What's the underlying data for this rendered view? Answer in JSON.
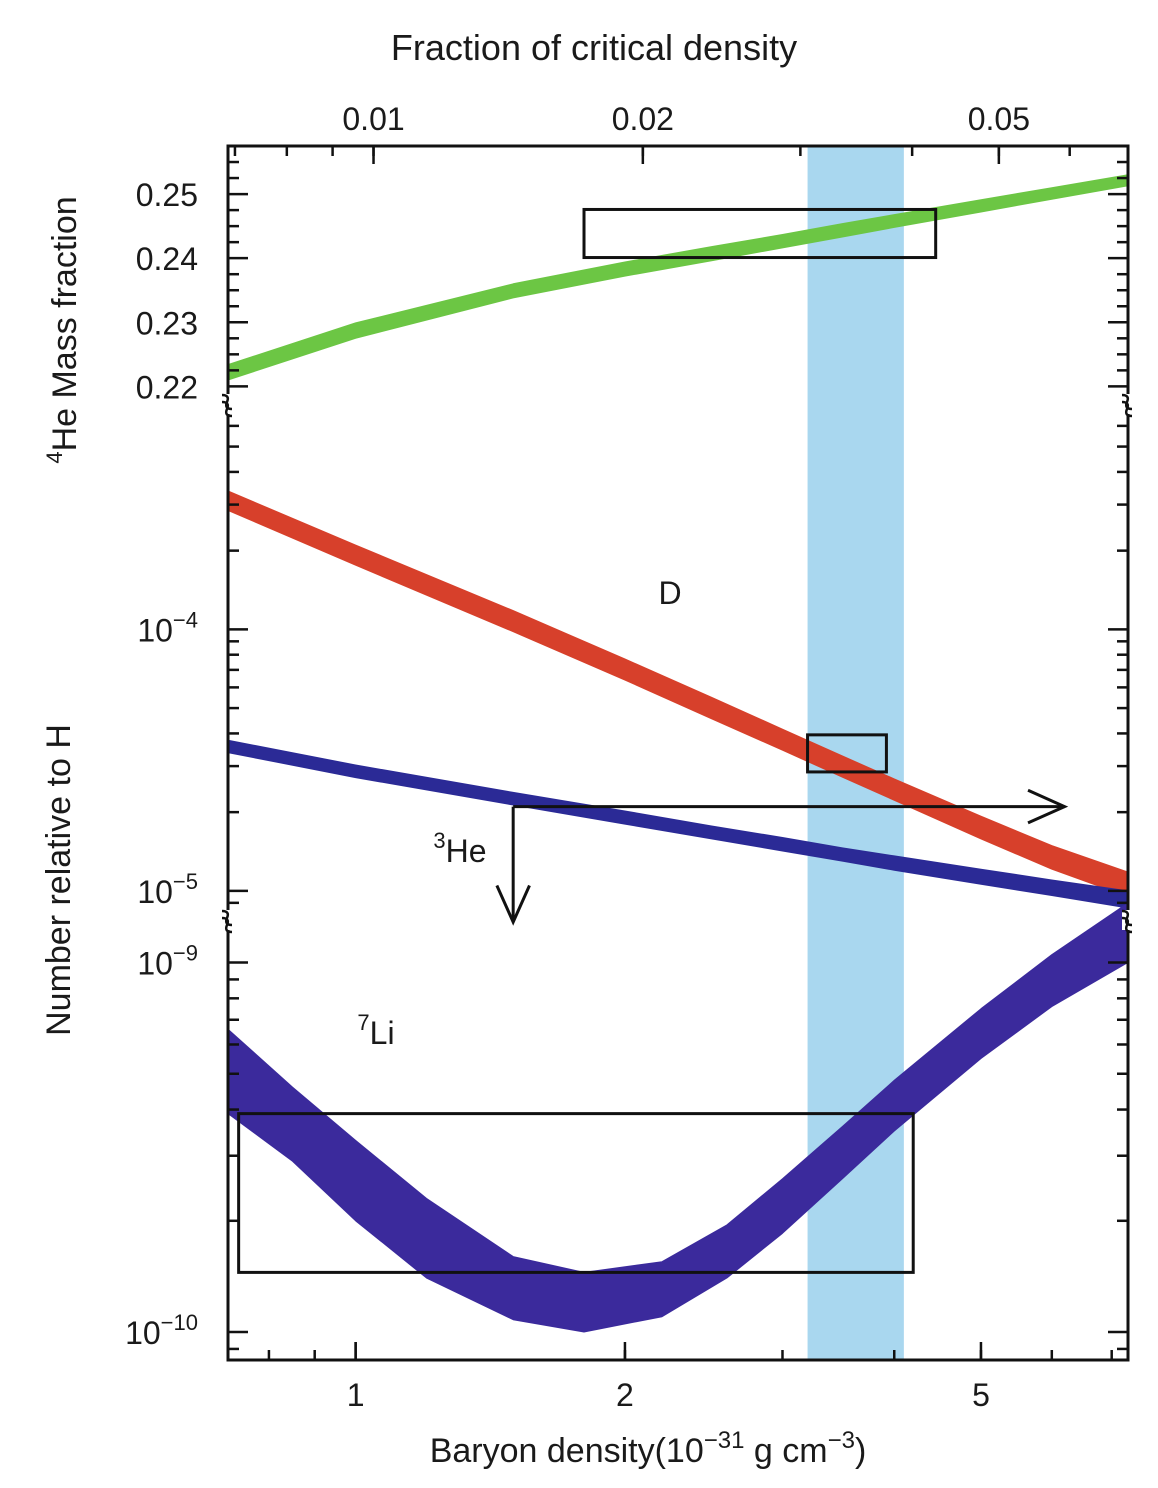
{
  "chart_data": {
    "type": "line",
    "xlabel": "Baryon density(10",
    "xlabel_exp": "−31",
    "xlabel_unit": " g cm",
    "xlabel_unit_exp": "−3",
    "xlabel_close": ")",
    "x_scale": "log",
    "x_range": [
      0.72,
      7.3
    ],
    "xticks": [
      {
        "value": 1,
        "label": "1"
      },
      {
        "value": 2,
        "label": "2"
      },
      {
        "value": 5,
        "label": "5"
      }
    ],
    "top_axis_label": "Fraction of critical density",
    "top_ticks": [
      {
        "value": 0.01,
        "label": "0.01"
      },
      {
        "value": 0.02,
        "label": "0.02"
      },
      {
        "value": 0.05,
        "label": "0.05"
      }
    ],
    "top_axis_factor": 0.00955,
    "ylabel_top_sup": "4",
    "ylabel_top": "He Mass fraction",
    "ylabel_bottom": "Number relative to H",
    "axis_breaks": true,
    "panels": [
      {
        "name": "helium4",
        "y_scale": "linear",
        "y_range": [
          0.2185,
          0.2575
        ],
        "yticks": [
          {
            "value": 0.22,
            "label": "0.22"
          },
          {
            "value": 0.23,
            "label": "0.23"
          },
          {
            "value": 0.24,
            "label": "0.24"
          },
          {
            "value": 0.25,
            "label": "0.25"
          }
        ]
      },
      {
        "name": "d_he3",
        "y_scale": "log",
        "y_range": [
          8.6e-06,
          0.00069
        ],
        "yticks": [
          {
            "value": 1e-05,
            "base": "10",
            "exp": "−5"
          },
          {
            "value": 0.0001,
            "base": "10",
            "exp": "−4"
          }
        ]
      },
      {
        "name": "lithium7",
        "y_scale": "log",
        "y_range": [
          8.4e-11,
          1.24e-09
        ],
        "yticks": [
          {
            "value": 1e-10,
            "base": "10",
            "exp": "−10"
          },
          {
            "value": 1e-09,
            "base": "10",
            "exp": "−9"
          }
        ]
      }
    ],
    "series": [
      {
        "key": "he4",
        "panel": 0,
        "color": "#6cc644",
        "x": [
          0.72,
          1.0,
          1.5,
          2.0,
          2.5,
          3.0,
          3.5,
          4.0,
          5.0,
          6.0,
          7.3
        ],
        "low": [
          0.221,
          0.2275,
          0.2338,
          0.2372,
          0.2396,
          0.2416,
          0.2433,
          0.2448,
          0.2472,
          0.2492,
          0.2513
        ],
        "high": [
          0.2234,
          0.2299,
          0.236,
          0.2394,
          0.2418,
          0.2437,
          0.2454,
          0.2468,
          0.2491,
          0.251,
          0.253
        ]
      },
      {
        "key": "deuterium",
        "label": "D",
        "label_x": 3.1,
        "label_y": 0.00013,
        "panel": 1,
        "color": "#d7402b",
        "x": [
          0.72,
          1.0,
          1.5,
          2.0,
          2.5,
          3.0,
          3.5,
          4.0,
          5.0,
          6.0,
          7.3
        ],
        "low": [
          0.000285,
          0.000176,
          9.8e-05,
          6.4e-05,
          4.55e-05,
          3.45e-05,
          2.72e-05,
          2.22e-05,
          1.58e-05,
          1.21e-05,
          9.5e-06
        ],
        "high": [
          0.000338,
          0.00021,
          0.000118,
          7.7e-05,
          5.5e-05,
          4.15e-05,
          3.28e-05,
          2.68e-05,
          1.93e-05,
          1.49e-05,
          1.18e-05
        ]
      },
      {
        "key": "helium3",
        "label_sup": "3",
        "label": "He",
        "label_x": 1.35,
        "label_y": 1.28e-05,
        "panel": 1,
        "color": "#2b2a96",
        "x": [
          0.72,
          1.0,
          1.5,
          2.0,
          2.5,
          3.0,
          3.5,
          4.0,
          5.0,
          6.0,
          7.3
        ],
        "low": [
          3.38e-05,
          2.71e-05,
          2.13e-05,
          1.8e-05,
          1.58e-05,
          1.42e-05,
          1.3e-05,
          1.2e-05,
          1.06e-05,
          9.6e-06,
          8.6e-06
        ],
        "high": [
          3.77e-05,
          3.03e-05,
          2.38e-05,
          2.02e-05,
          1.77e-05,
          1.6e-05,
          1.46e-05,
          1.36e-05,
          1.21e-05,
          1.1e-05,
          1e-05
        ]
      },
      {
        "key": "lithium7",
        "label_sup": "7",
        "label": "Li",
        "label_x": 0.86,
        "label_y": 7.6e-10,
        "panel": 2,
        "color": "#3b2a9c",
        "x": [
          0.72,
          0.85,
          1.0,
          1.2,
          1.5,
          1.8,
          2.2,
          2.6,
          3.0,
          3.5,
          4.0,
          5.0,
          6.0,
          7.3
        ],
        "low": [
          3.9e-10,
          2.9e-10,
          2e-10,
          1.4e-10,
          1.08e-10,
          1e-10,
          1.1e-10,
          1.4e-10,
          1.85e-10,
          2.6e-10,
          3.5e-10,
          5.5e-10,
          7.6e-10,
          1e-09
        ],
        "high": [
          6.6e-10,
          4.6e-10,
          3.3e-10,
          2.3e-10,
          1.6e-10,
          1.45e-10,
          1.55e-10,
          1.95e-10,
          2.6e-10,
          3.6e-10,
          4.8e-10,
          7.5e-10,
          1.05e-09,
          1.45e-09
        ]
      }
    ],
    "observation_boxes": [
      {
        "panel": 0,
        "x": [
          1.8,
          4.45
        ],
        "y": [
          0.2401,
          0.2476
        ]
      },
      {
        "panel": 1,
        "x": [
          3.2,
          3.92
        ],
        "y": [
          2.85e-05,
          3.95e-05
        ]
      },
      {
        "panel": 2,
        "x": [
          0.74,
          4.2
        ],
        "y": [
          1.45e-10,
          3.9e-10
        ]
      }
    ],
    "arrows": [
      {
        "panel": 1,
        "from": [
          1.5,
          2.1e-05
        ],
        "to": [
          6.2,
          2.1e-05
        ]
      },
      {
        "panel": 1,
        "from": [
          1.5,
          2.1e-05
        ],
        "to": [
          1.5,
          7.6e-06
        ]
      }
    ],
    "highlight_band": {
      "x": [
        3.2,
        4.1
      ],
      "color": "#a9d7ef"
    }
  }
}
